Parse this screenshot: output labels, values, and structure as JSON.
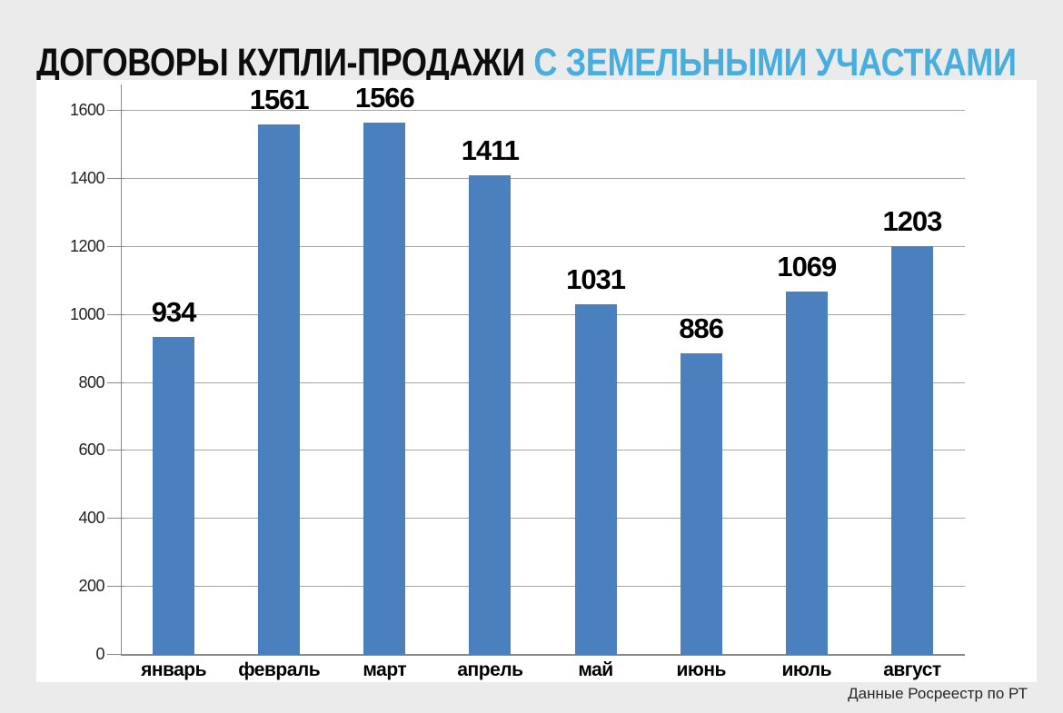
{
  "title": {
    "primary": "ДОГОВОРЫ КУПЛИ-ПРОДАЖИ",
    "accent": "С ЗЕМЕЛЬНЫМИ УЧАСТКАМИ"
  },
  "footer": {
    "source": "Данные Росреестр по РТ"
  },
  "colors": {
    "page_background": "#EBEBEB",
    "panel_background": "#FFFFFF",
    "bar": "#4A80BD",
    "title_primary": "#0D0D0D",
    "title_accent": "#48AEDD",
    "gridline": "#A6A6A6",
    "axis": "#898989",
    "tick_label": "#1F1F1F",
    "value_label": "#000000",
    "source_text": "#262626"
  },
  "chart_data": {
    "type": "bar",
    "title": "ДОГОВОРЫ КУПЛИ-ПРОДАЖИ С ЗЕМЕЛЬНЫМИ УЧАСТКАМИ",
    "categories": [
      "январь",
      "февраль",
      "март",
      "апрель",
      "май",
      "июнь",
      "июль",
      "август"
    ],
    "values": [
      934,
      1561,
      1566,
      1411,
      1031,
      886,
      1069,
      1203
    ],
    "xlabel": "",
    "ylabel": "",
    "ylim": [
      0,
      1600
    ],
    "yticks": [
      0,
      200,
      400,
      600,
      800,
      1000,
      1200,
      1400,
      1600
    ],
    "grid": true,
    "legend": false,
    "data_labels": true,
    "source": "Данные Росреестр по РТ"
  }
}
